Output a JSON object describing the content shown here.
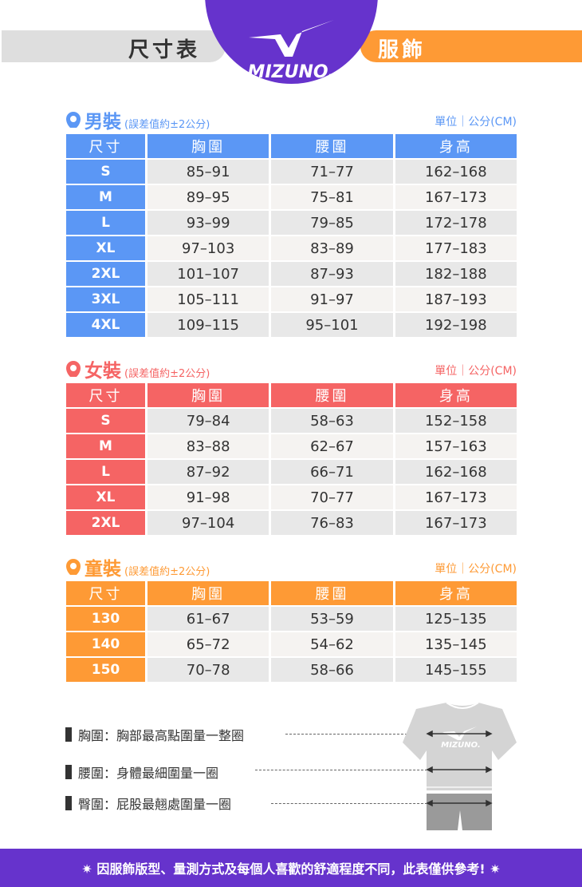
{
  "header": {
    "left_title": "尺寸表",
    "right_title": "服飾",
    "brand": "MIZUNO",
    "colors": {
      "purple": "#6633cc",
      "orange": "#fe9a35",
      "gray": "#dedede"
    }
  },
  "sections": [
    {
      "key": "men",
      "title": "男裝",
      "note": "(誤差值約±2公分)",
      "unit": "單位｜公分(CM)",
      "color": "#5b97f5",
      "headers": [
        "尺寸",
        "胸圍",
        "腰圍",
        "身高"
      ],
      "rows": [
        [
          "S",
          "85–91",
          "71–77",
          "162–168"
        ],
        [
          "M",
          "89–95",
          "75–81",
          "167–173"
        ],
        [
          "L",
          "93–99",
          "79–85",
          "172–178"
        ],
        [
          "XL",
          "97–103",
          "83–89",
          "177–183"
        ],
        [
          "2XL",
          "101–107",
          "87–93",
          "182–188"
        ],
        [
          "3XL",
          "105–111",
          "91–97",
          "187–193"
        ],
        [
          "4XL",
          "109–115",
          "95–101",
          "192–198"
        ]
      ]
    },
    {
      "key": "women",
      "title": "女裝",
      "note": "(誤差值約±2公分)",
      "unit": "單位｜公分(CM)",
      "color": "#f56464",
      "headers": [
        "尺寸",
        "胸圍",
        "腰圍",
        "身高"
      ],
      "rows": [
        [
          "S",
          "79–84",
          "58–63",
          "152–158"
        ],
        [
          "M",
          "83–88",
          "62–67",
          "157–163"
        ],
        [
          "L",
          "87–92",
          "66–71",
          "162–168"
        ],
        [
          "XL",
          "91–98",
          "70–77",
          "167–173"
        ],
        [
          "2XL",
          "97–104",
          "76–83",
          "167–173"
        ]
      ]
    },
    {
      "key": "kids",
      "title": "童裝",
      "note": "(誤差值約±2公分)",
      "unit": "單位｜公分(CM)",
      "color": "#fe9a35",
      "headers": [
        "尺寸",
        "胸圍",
        "腰圍",
        "身高"
      ],
      "rows": [
        [
          "130",
          "61–67",
          "53–59",
          "125–135"
        ],
        [
          "140",
          "65–72",
          "54–62",
          "135–145"
        ],
        [
          "150",
          "70–78",
          "58–66",
          "145–155"
        ]
      ]
    }
  ],
  "legend": [
    "胸圍：胸部最高點圍量一整圈",
    "腰圍：身體最細圍量一圈",
    "臀圍：屁股最翹處圍量一圈"
  ],
  "footer": "✷ 因服飾版型、量測方式及每個人喜歡的舒適程度不同，此表僅供參考! ✷"
}
